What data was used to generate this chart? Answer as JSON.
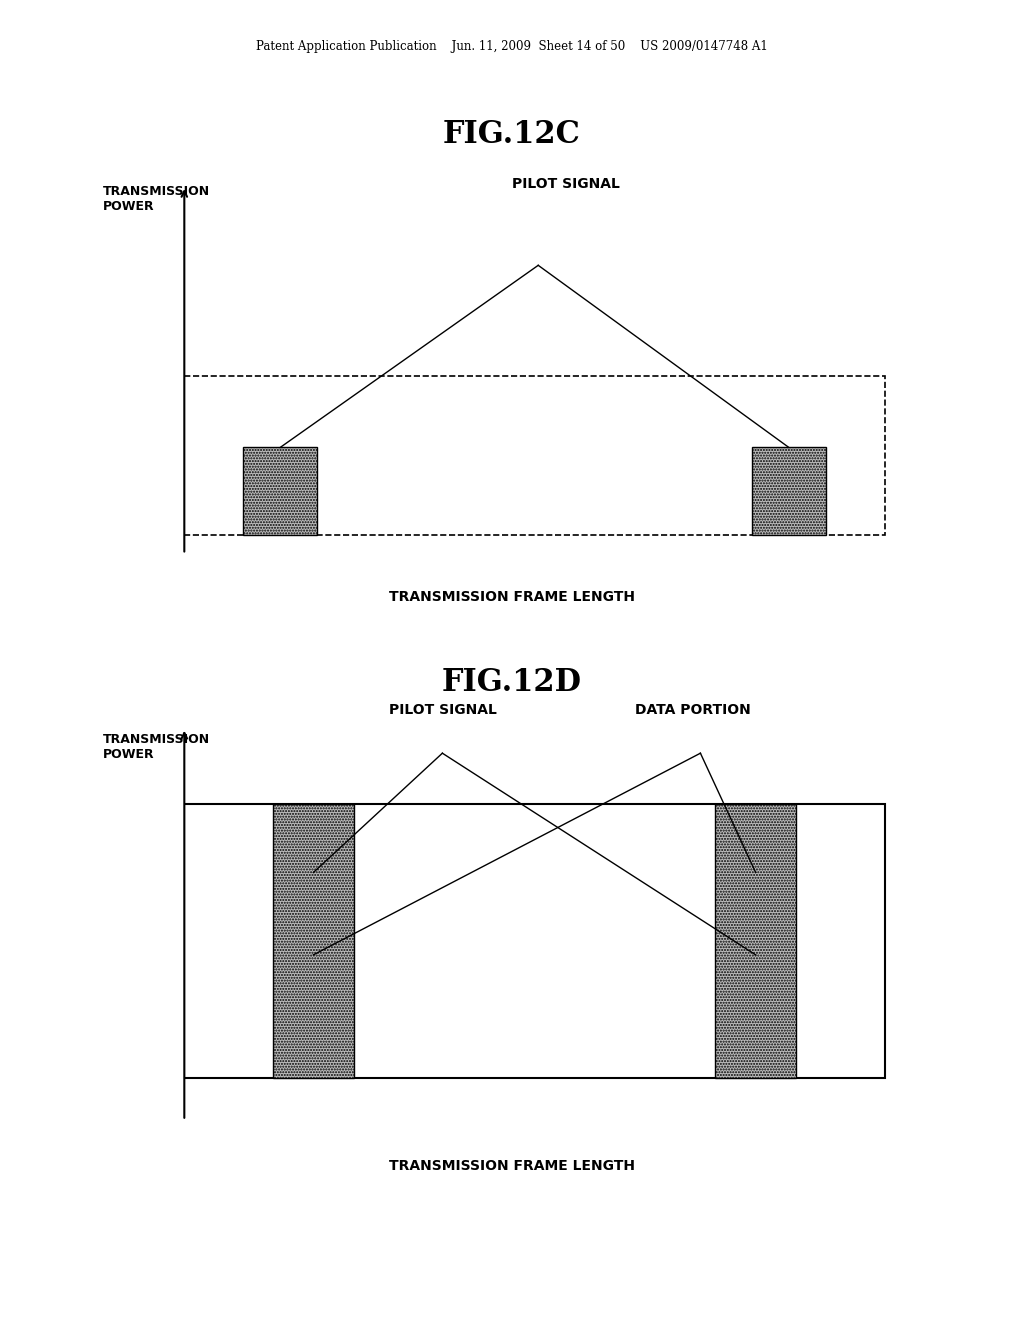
{
  "bg_color": "#ffffff",
  "header_text": "Patent Application Publication    Jun. 11, 2009  Sheet 14 of 50    US 2009/0147748 A1",
  "fig12c_title": "FIG.12C",
  "fig12d_title": "FIG.12D",
  "transmission_power_label": "TRANSMISSION\nPOWER",
  "transmission_frame_length_label": "TRANSMISSION FRAME LENGTH",
  "pilot_signal_label": "PILOT SIGNAL",
  "data_portion_label": "DATA PORTION"
}
